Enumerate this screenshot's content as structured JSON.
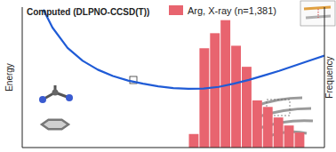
{
  "chart_data": {
    "type": "histogram",
    "title": "Computed (DLPNO-CCSD(T))",
    "y_label": "Energy",
    "y2_label": "Frequency",
    "xlim": [
      0,
      10
    ],
    "ylim": [
      0,
      11
    ],
    "y2lim": [
      0,
      280
    ],
    "tick_labels": false,
    "grid": false,
    "legend": "top",
    "bins": [
      5.5,
      5.85,
      6.2,
      6.55,
      6.9,
      7.25,
      7.6,
      7.95,
      8.3,
      8.65,
      9.0,
      9.35
    ],
    "series": [
      {
        "name": "Arg, X-ray (n=1,381)",
        "type": "bar",
        "axis": "y2",
        "color": "#e8646f",
        "values": [
          27,
          198,
          228,
          254,
          203,
          161,
          94,
          81,
          60,
          44,
          30
        ]
      },
      {
        "type": "line",
        "color": "#1f5bd6",
        "x": [
          0.7,
          1,
          1.5,
          2,
          2.5,
          3,
          3.5,
          4,
          4.5,
          5,
          5.5,
          6,
          6.5,
          7,
          7.5,
          8,
          8.5,
          9,
          9.5,
          10
        ],
        "values": [
          10.8,
          9.4,
          7.8,
          6.8,
          6.1,
          5.6,
          5.25,
          5.0,
          4.8,
          4.65,
          4.6,
          4.62,
          4.75,
          5.0,
          5.3,
          5.65,
          6.0,
          6.4,
          6.8,
          7.2
        ]
      }
    ]
  }
}
